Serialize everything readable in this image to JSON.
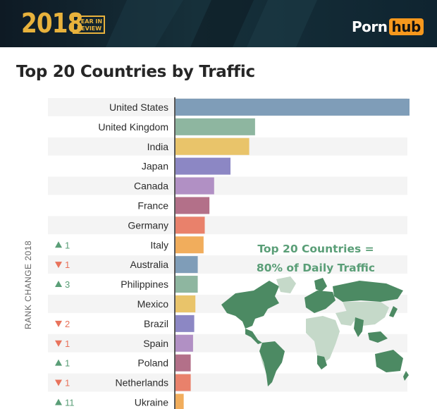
{
  "header": {
    "year": "2018",
    "year_in_review": [
      "YEAR IN",
      "REVIEW"
    ],
    "brand_left": "Porn",
    "brand_right": "hub",
    "accent": "#e8b23c",
    "brand_accent": "#f7981d"
  },
  "title": "Top 20 Countries by Traffic",
  "callout": [
    "Top 20 Countries =",
    "80% of Daily Traffic"
  ],
  "chart_data": {
    "type": "bar",
    "orientation": "horizontal",
    "title": "Top 20 Countries by Traffic",
    "xlabel": "",
    "ylabel": "RANK CHANGE 2018",
    "xlim": [
      0,
      100
    ],
    "grid": false,
    "legend": "none",
    "categories": [
      "United States",
      "United Kingdom",
      "India",
      "Japan",
      "Canada",
      "France",
      "Germany",
      "Italy",
      "Australia",
      "Philippines",
      "Mexico",
      "Brazil",
      "Spain",
      "Poland",
      "Netherlands",
      "Ukraine"
    ],
    "values": [
      100,
      34,
      31.5,
      23.5,
      16.5,
      14.5,
      12.5,
      12,
      9.5,
      9.5,
      8.5,
      8,
      7.5,
      6.5,
      6.5,
      3.5
    ],
    "colors": [
      "#7f9db8",
      "#8eb6a0",
      "#e9c46a",
      "#8c87c4",
      "#b190c4",
      "#b37089",
      "#e9816b",
      "#f1ad5c",
      "#7f9db8",
      "#8eb6a0",
      "#e9c46a",
      "#8c87c4",
      "#b190c4",
      "#b37089",
      "#e9816b",
      "#f1ad5c"
    ],
    "rank_change": [
      null,
      null,
      null,
      null,
      null,
      null,
      null,
      {
        "dir": "up",
        "text": "1"
      },
      {
        "dir": "down",
        "text": "1"
      },
      {
        "dir": "up",
        "text": "3"
      },
      null,
      {
        "dir": "down",
        "text": "2"
      },
      {
        "dir": "down",
        "text": "1"
      },
      {
        "dir": "up",
        "text": "1"
      },
      {
        "dir": "down",
        "text": "1"
      },
      {
        "dir": "up",
        "text": "11"
      }
    ],
    "arrow_colors": {
      "up": "#5a9e77",
      "down": "#e8735c"
    }
  }
}
